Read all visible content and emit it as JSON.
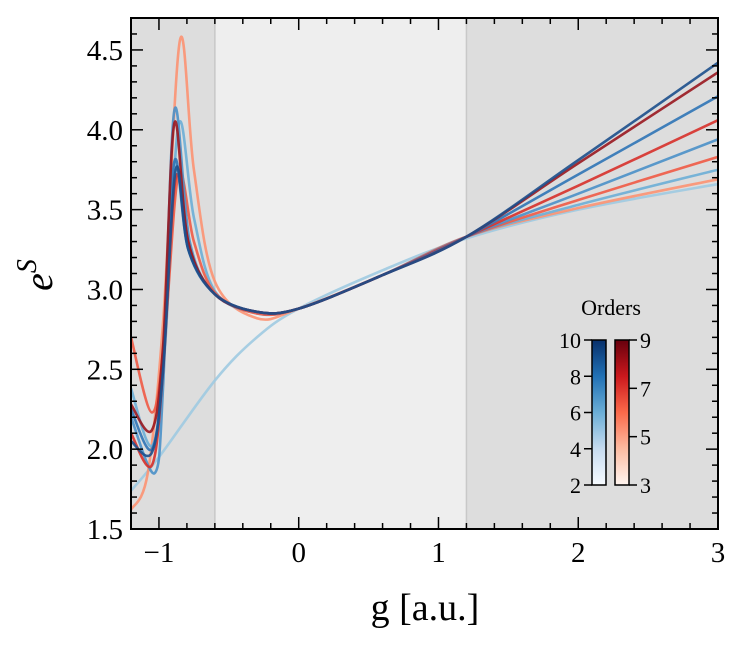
{
  "chart_data": {
    "type": "line",
    "xlabel": "g [a.u.]",
    "ylabel_base": "e",
    "ylabel_sup": "S",
    "xlim": [
      -1.2,
      3
    ],
    "ylim": [
      1.5,
      4.7
    ],
    "xticks": [
      -1,
      0,
      1,
      2,
      3
    ],
    "xtick_labels": [
      "−1",
      "0",
      "1",
      "2",
      "3"
    ],
    "yticks": [
      1.5,
      2.0,
      2.5,
      3.0,
      3.5,
      4.0,
      4.5
    ],
    "ytick_labels": [
      "1.5",
      "2.0",
      "2.5",
      "3.0",
      "3.5",
      "4.0",
      "4.5"
    ],
    "grid": false,
    "shaded_regions": [
      {
        "from": -1.2,
        "to": -0.6,
        "color": "#dddddd"
      },
      {
        "from": -0.6,
        "to": 1.2,
        "color": "#eeeeee"
      },
      {
        "from": 1.2,
        "to": 3,
        "color": "#dddddd"
      }
    ],
    "legend": {
      "title": "Orders",
      "placement": "lower-right",
      "blue_bar": {
        "ticks": [
          "10",
          "8",
          "6",
          "4",
          "2"
        ],
        "min": 2,
        "max": 10,
        "colors": [
          "#f7fbff",
          "#c6dbef",
          "#6baed6",
          "#2171b5",
          "#08306b"
        ]
      },
      "red_bar": {
        "ticks": [
          "9",
          "7",
          "5",
          "3"
        ],
        "min": 3,
        "max": 9,
        "colors": [
          "#fff5f0",
          "#fcbba1",
          "#fb6a4a",
          "#cb181d",
          "#67000d"
        ]
      }
    },
    "series": [
      {
        "order": 2,
        "color": "#9ecae1",
        "points": [
          [
            -1.2,
            1.74
          ],
          [
            -1.0,
            1.95
          ],
          [
            -0.6,
            2.43
          ],
          [
            -0.3,
            2.7
          ],
          [
            0,
            2.88
          ],
          [
            0.6,
            3.12
          ],
          [
            1.2,
            3.32
          ],
          [
            2,
            3.5
          ],
          [
            3,
            3.66
          ]
        ]
      },
      {
        "order": 3,
        "color": "#fc9272",
        "points": [
          [
            -1.2,
            1.62
          ],
          [
            -1.08,
            1.85
          ],
          [
            -0.97,
            2.8
          ],
          [
            -0.85,
            4.56
          ],
          [
            -0.75,
            3.75
          ],
          [
            -0.6,
            3.05
          ],
          [
            -0.3,
            2.82
          ],
          [
            0,
            2.88
          ],
          [
            0.6,
            3.09
          ],
          [
            1.2,
            3.33
          ],
          [
            2,
            3.51
          ],
          [
            3,
            3.69
          ]
        ]
      },
      {
        "order": 4,
        "color": "#6baed6",
        "points": [
          [
            -1.2,
            2.38
          ],
          [
            -1.05,
            2.02
          ],
          [
            -0.96,
            2.6
          ],
          [
            -0.86,
            4.03
          ],
          [
            -0.75,
            3.45
          ],
          [
            -0.6,
            2.99
          ],
          [
            -0.3,
            2.85
          ],
          [
            0,
            2.88
          ],
          [
            0.6,
            3.09
          ],
          [
            1.2,
            3.33
          ],
          [
            2,
            3.53
          ],
          [
            3,
            3.75
          ]
        ]
      },
      {
        "order": 5,
        "color": "#ef5a45",
        "points": [
          [
            -1.2,
            2.7
          ],
          [
            -1.05,
            2.23
          ],
          [
            -0.96,
            2.7
          ],
          [
            -0.86,
            3.72
          ],
          [
            -0.75,
            3.3
          ],
          [
            -0.6,
            2.98
          ],
          [
            -0.3,
            2.85
          ],
          [
            0,
            2.88
          ],
          [
            0.6,
            3.09
          ],
          [
            1.2,
            3.33
          ],
          [
            2,
            3.56
          ],
          [
            3,
            3.83
          ]
        ]
      },
      {
        "order": 6,
        "color": "#4a90c8",
        "points": [
          [
            -1.2,
            2.2
          ],
          [
            -1.03,
            1.85
          ],
          [
            -0.97,
            2.4
          ],
          [
            -0.89,
            4.12
          ],
          [
            -0.78,
            3.3
          ],
          [
            -0.6,
            2.97
          ],
          [
            -0.3,
            2.86
          ],
          [
            0,
            2.88
          ],
          [
            0.6,
            3.09
          ],
          [
            1.2,
            3.33
          ],
          [
            2,
            3.6
          ],
          [
            3,
            3.94
          ]
        ]
      },
      {
        "order": 7,
        "color": "#d7302a",
        "points": [
          [
            -1.2,
            2.1
          ],
          [
            -1.05,
            1.9
          ],
          [
            -0.97,
            2.5
          ],
          [
            -0.88,
            3.7
          ],
          [
            -0.78,
            3.25
          ],
          [
            -0.6,
            2.97
          ],
          [
            -0.3,
            2.86
          ],
          [
            0,
            2.88
          ],
          [
            0.6,
            3.09
          ],
          [
            1.2,
            3.33
          ],
          [
            2,
            3.65
          ],
          [
            3,
            4.06
          ]
        ]
      },
      {
        "order": 8,
        "color": "#2f74b6",
        "points": [
          [
            -1.2,
            2.25
          ],
          [
            -1.05,
            2.0
          ],
          [
            -0.97,
            2.55
          ],
          [
            -0.89,
            3.8
          ],
          [
            -0.79,
            3.25
          ],
          [
            -0.6,
            2.97
          ],
          [
            -0.3,
            2.86
          ],
          [
            0,
            2.88
          ],
          [
            0.6,
            3.09
          ],
          [
            1.2,
            3.33
          ],
          [
            2,
            3.72
          ],
          [
            3,
            4.21
          ]
        ]
      },
      {
        "order": 9,
        "color": "#99171f",
        "points": [
          [
            -1.2,
            2.28
          ],
          [
            -1.05,
            2.12
          ],
          [
            -0.97,
            2.65
          ],
          [
            -0.89,
            4.04
          ],
          [
            -0.79,
            3.3
          ],
          [
            -0.6,
            2.97
          ],
          [
            -0.3,
            2.86
          ],
          [
            0,
            2.88
          ],
          [
            0.6,
            3.09
          ],
          [
            1.2,
            3.33
          ],
          [
            2,
            3.79
          ],
          [
            3,
            4.36
          ]
        ]
      },
      {
        "order": 10,
        "color": "#1c4f8c",
        "points": [
          [
            -1.2,
            2.05
          ],
          [
            -1.05,
            1.98
          ],
          [
            -0.97,
            2.5
          ],
          [
            -0.88,
            3.75
          ],
          [
            -0.79,
            3.25
          ],
          [
            -0.6,
            2.97
          ],
          [
            -0.3,
            2.86
          ],
          [
            0,
            2.88
          ],
          [
            0.6,
            3.09
          ],
          [
            1.2,
            3.33
          ],
          [
            2,
            3.81
          ],
          [
            3,
            4.42
          ]
        ]
      }
    ]
  }
}
